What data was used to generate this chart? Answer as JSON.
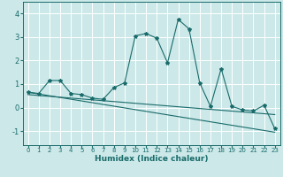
{
  "title": "",
  "xlabel": "Humidex (Indice chaleur)",
  "ylabel": "",
  "bg_color": "#cce8e8",
  "line_color": "#1a6b6b",
  "grid_color": "#ffffff",
  "xlim": [
    -0.5,
    23.5
  ],
  "ylim": [
    -1.6,
    4.5
  ],
  "xticks": [
    0,
    1,
    2,
    3,
    4,
    5,
    6,
    7,
    8,
    9,
    10,
    11,
    12,
    13,
    14,
    15,
    16,
    17,
    18,
    19,
    20,
    21,
    22,
    23
  ],
  "yticks": [
    -1,
    0,
    1,
    2,
    3,
    4
  ],
  "series1_x": [
    0,
    1,
    2,
    3,
    4,
    5,
    6,
    7,
    8,
    9,
    10,
    11,
    12,
    13,
    14,
    15,
    16,
    17,
    18,
    19,
    20,
    21,
    22,
    23
  ],
  "series1_y": [
    0.65,
    0.6,
    1.15,
    1.15,
    0.6,
    0.55,
    0.4,
    0.35,
    0.85,
    1.05,
    3.05,
    3.15,
    2.95,
    1.9,
    3.75,
    3.35,
    1.05,
    0.05,
    1.65,
    0.05,
    -0.1,
    -0.15,
    0.1,
    -0.9
  ],
  "series2_x": [
    0,
    23
  ],
  "series2_y": [
    0.65,
    -1.05
  ],
  "series3_x": [
    0,
    23
  ],
  "series3_y": [
    0.55,
    -0.3
  ],
  "figsize": [
    3.2,
    2.0
  ],
  "dpi": 100
}
